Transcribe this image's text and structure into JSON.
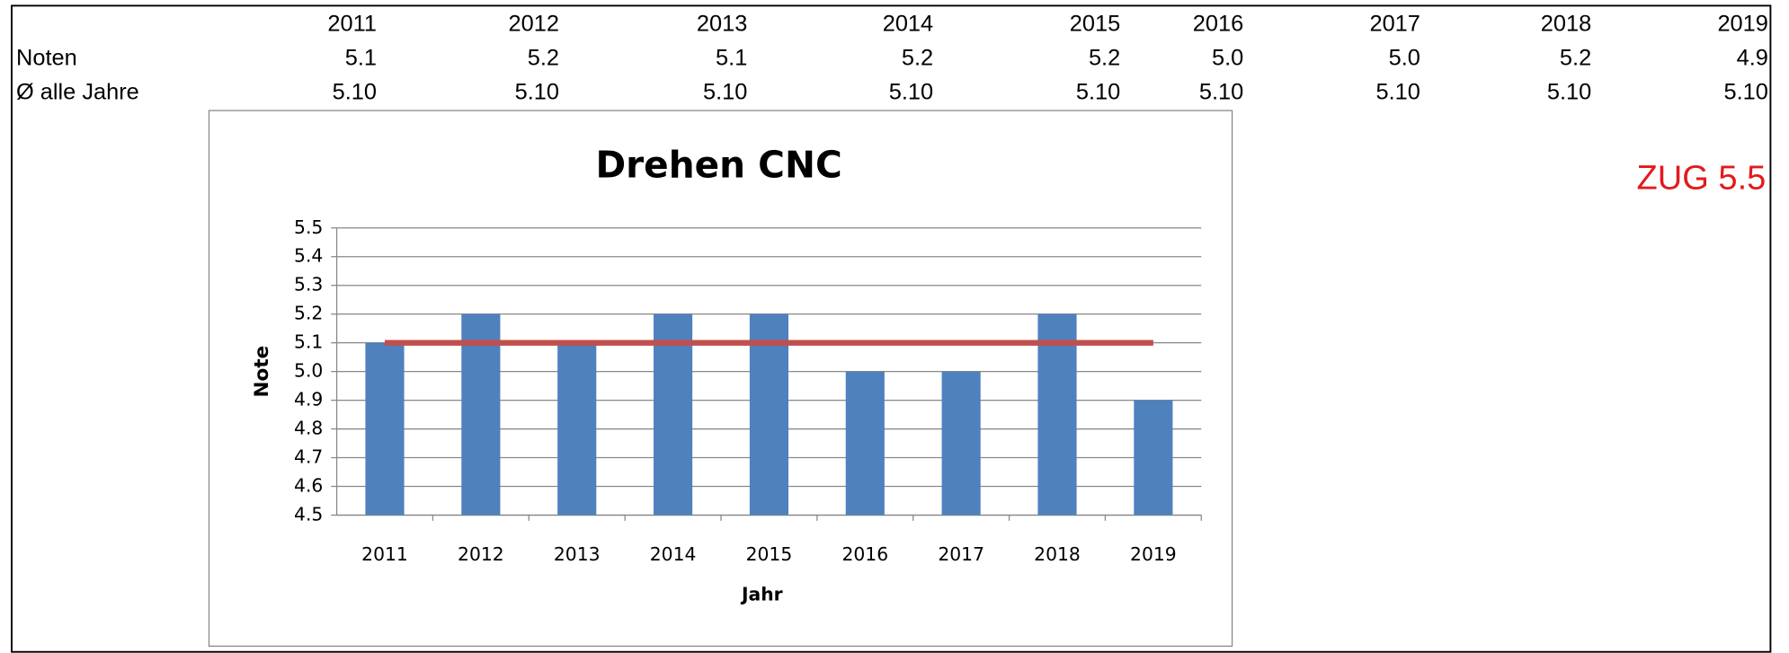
{
  "table": {
    "header": [
      "2011",
      "2012",
      "2013",
      "2014",
      "2015",
      "2016",
      "2017",
      "2018",
      "2019"
    ],
    "rows": [
      [
        "Noten",
        "5.1",
        "5.2",
        "5.1",
        "5.2",
        "5.2",
        "5.0",
        "5.0",
        "5.2",
        "4.9"
      ],
      [
        "Ø alle Jahre",
        "5.10",
        "5.10",
        "5.10",
        "5.10",
        "5.10",
        "5.10",
        "5.10",
        "5.10",
        "5.10"
      ]
    ]
  },
  "note": "ZUG 5.5",
  "chart_data": {
    "type": "bar",
    "title": "Drehen CNC",
    "x_label": "Jahr",
    "y_label": "Note",
    "categories": [
      "2011",
      "2012",
      "2013",
      "2014",
      "2015",
      "2016",
      "2017",
      "2018",
      "2019"
    ],
    "series": [
      {
        "name": "Noten",
        "type": "bar",
        "color": "#4f81bd",
        "values": [
          5.1,
          5.2,
          5.1,
          5.2,
          5.2,
          5.0,
          5.0,
          5.2,
          4.9
        ]
      },
      {
        "name": "Ø alle Jahre",
        "type": "line",
        "color": "#c0504d",
        "values": [
          5.1,
          5.1,
          5.1,
          5.1,
          5.1,
          5.1,
          5.1,
          5.1,
          5.1
        ]
      }
    ],
    "ylim": [
      4.5,
      5.5
    ],
    "yticks": [
      4.5,
      4.6,
      4.7,
      4.8,
      4.9,
      {
        "value": 5,
        "label": "5.0"
      },
      5.1,
      5.2,
      5.3,
      5.4,
      5.5
    ],
    "grid": true
  }
}
